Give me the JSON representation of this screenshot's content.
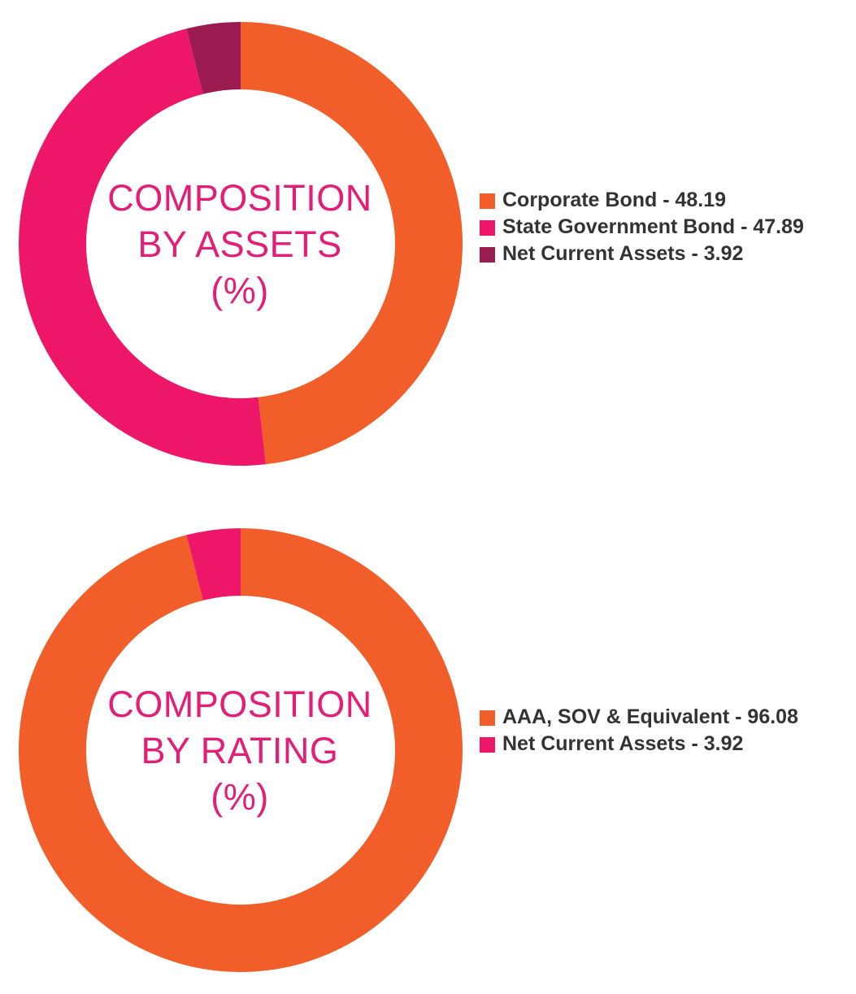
{
  "chart_data": [
    {
      "type": "pie",
      "title": "COMPOSITION BY ASSETS (%)",
      "title_lines": [
        "COMPOSITION",
        "BY ASSETS",
        "(%)"
      ],
      "categories": [
        "Corporate Bond",
        "State Government Bond",
        "Net Current Assets"
      ],
      "values": [
        48.19,
        47.89,
        3.92
      ],
      "colors": [
        "#f15e2a",
        "#ed1669",
        "#9b1a50"
      ],
      "legend_labels": [
        "Corporate Bond - 48.19",
        "State Government Bond - 47.89",
        "Net Current Assets - 3.92"
      ],
      "legend_position": "right",
      "donut": true
    },
    {
      "type": "pie",
      "title": "COMPOSITION BY RATING (%)",
      "title_lines": [
        "COMPOSITION",
        "BY RATING",
        "(%)"
      ],
      "categories": [
        "AAA, SOV & Equivalent",
        "Net Current Assets"
      ],
      "values": [
        96.08,
        3.92
      ],
      "colors": [
        "#f15e2a",
        "#ed1669"
      ],
      "legend_labels": [
        "AAA, SOV & Equivalent - 96.08",
        "Net Current Assets - 3.92"
      ],
      "legend_position": "right",
      "donut": true
    }
  ]
}
